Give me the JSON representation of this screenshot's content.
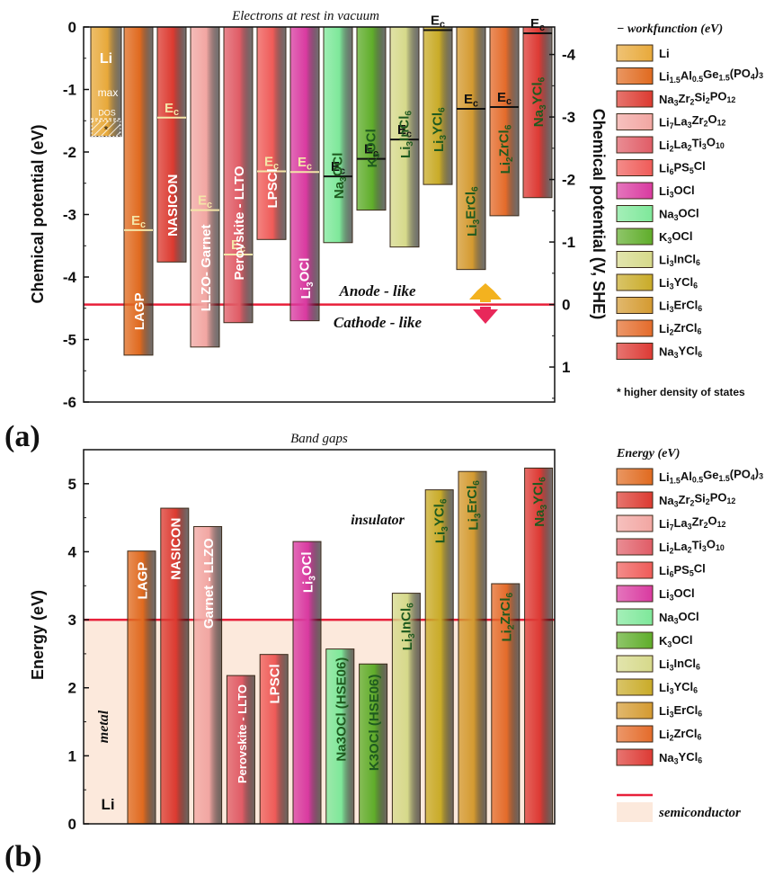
{
  "chart_data": [
    {
      "type": "bar",
      "panel_label": "(a)",
      "title": "Electrons at rest in vacuum",
      "ylabel": "Chemical potential (eV)",
      "ylabel_right": "Chemical potential (V, SHE)",
      "ylim": [
        -6,
        0
      ],
      "yticks": [
        "0",
        "-1",
        "-2",
        "-3",
        "-4",
        "-5",
        "-6"
      ],
      "ylim_right": [
        -4.44,
        1.56
      ],
      "yticks_right": [
        "-4",
        "-3",
        "-2",
        "-1",
        "0",
        "1"
      ],
      "reference_line": -4.44,
      "anode_label": "Anode - like",
      "cathode_label": "Cathode - like",
      "bar_labels": [
        "Li",
        "LAGP",
        "NASICON",
        "LLZO- Garnet",
        "Perovskite - LLTO",
        "LPSCl",
        "Li3OCl",
        "Na3OCl",
        "K3OCl",
        "Li3InCl6",
        "Li3YCl6",
        "Li3ErCl6",
        "Li2ZrCl6",
        "Na3YCl6"
      ],
      "values": [
        -1.75,
        -5.25,
        -3.76,
        -5.12,
        -4.73,
        -3.4,
        -4.7,
        -3.45,
        -2.93,
        -3.52,
        -2.52,
        -3.88,
        -3.02,
        -2.73
      ],
      "ec_values": [
        null,
        -3.25,
        -1.45,
        -2.93,
        -3.64,
        -2.31,
        -2.32,
        -2.39,
        -2.11,
        -1.8,
        -0.05,
        -1.31,
        -1.28,
        -0.1
      ],
      "ec_label": "Ec",
      "li_annotation": [
        "max",
        "DOS",
        "*"
      ],
      "legend_title": "− workfunction (eV)",
      "legend": [
        "Li",
        "Li1.5Al0.5Ge1.5(PO4)3",
        "Na3Zr2Si2PO12",
        "Li7La3Zr2O12",
        "Li2La2Ti3O10",
        "Li6PS5Cl",
        "Li3OCl",
        "Na3OCl",
        "K3OCl",
        "Li3InCl6",
        "Li3YCl6",
        "Li3ErCl6",
        "Li2ZrCl6",
        "Na3YCl6"
      ],
      "footnote": "* higher density of states"
    },
    {
      "type": "bar",
      "panel_label": "(b)",
      "title": "Band gaps",
      "ylabel": "Energy (eV)",
      "ylim": [
        0,
        5.5
      ],
      "yticks": [
        "0",
        "1",
        "2",
        "3",
        "4",
        "5"
      ],
      "threshold": 3,
      "insulator_label": "insulator",
      "metal_label": "metal",
      "li_label": "Li",
      "bar_labels": [
        "LAGP",
        "NASICON",
        "Garnet - LLZO",
        "Perovskite - LLTO",
        "LPSCl",
        "Li3OCl",
        "Na3OCl (HSE06)",
        "K3OCl (HSE06)",
        "Li3InCl6",
        "Li3YCl6",
        "Li3ErCl6",
        "Li2ZrCl6",
        "Na3YCl6"
      ],
      "values": [
        4.01,
        4.64,
        4.37,
        2.18,
        2.49,
        4.15,
        2.57,
        2.35,
        3.39,
        4.91,
        5.18,
        3.53,
        5.23
      ],
      "legend_title": "Energy (eV)",
      "legend": [
        "Li1.5Al0.5Ge1.5(PO4)3",
        "Na3Zr2Si2PO12",
        "Li7La3Zr2O12",
        "Li2La2Ti3O10",
        "Li6PS5Cl",
        "Li3OCl",
        "Na3OCl",
        "K3OCl",
        "Li3InCl6",
        "Li3YCl6",
        "Li3ErCl6",
        "Li2ZrCl6",
        "Na3YCl6"
      ],
      "legend_extra": [
        "semiconductor"
      ]
    }
  ],
  "colors": {
    "Li": "#e8a93a",
    "LAGP": "#e06a1f",
    "NASICON": "#dc3a30",
    "LLZO": "#f2a6a2",
    "LLTO": "#e05c66",
    "LPSCl": "#ef5b58",
    "Li3OCl": "#d93aa0",
    "Na3OCl": "#7ee89a",
    "K3OCl": "#5fad2a",
    "Li3InCl6": "#d6d98a",
    "Li3YCl6": "#c9ab28",
    "Li3ErCl6": "#d49a30",
    "Li2ZrCl6": "#e46b2a",
    "Na3YCl6": "#dd3a34",
    "reference_line": "#e8203a",
    "semiconductor_fill": "#fce9dc",
    "ec_line_light": "#f4e6a8",
    "ec_line_dark": "#111111"
  }
}
